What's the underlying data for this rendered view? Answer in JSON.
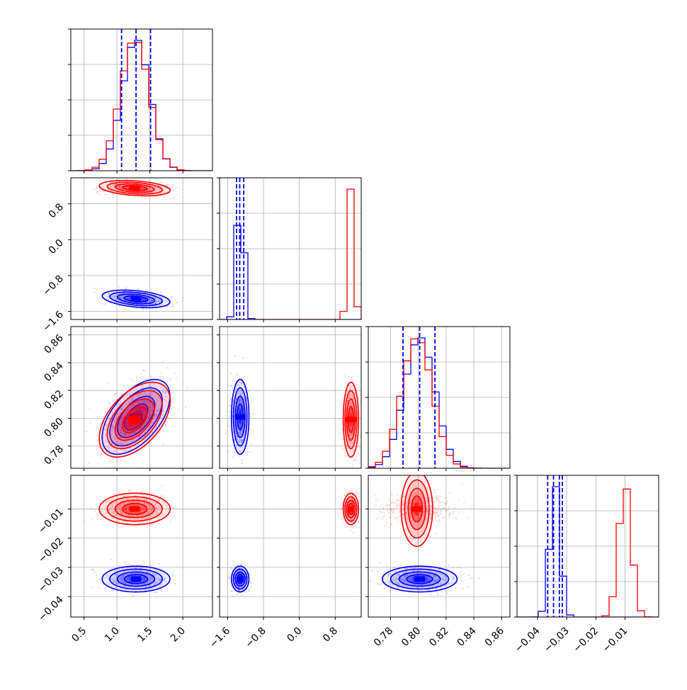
{
  "chart_data": {
    "type": "corner",
    "variables": [
      {
        "range": [
          0.3,
          2.45
        ],
        "ticks": [
          0.5,
          1.0,
          1.5,
          2.0
        ],
        "tick_labels": [
          "0.5",
          "1.0",
          "1.5",
          "2.0"
        ]
      },
      {
        "range": [
          -1.78,
          1.38
        ],
        "ticks": [
          -1.6,
          -0.8,
          0.0,
          0.8
        ],
        "tick_labels": [
          "−1.6",
          "−0.8",
          "0.0",
          "0.8"
        ]
      },
      {
        "range": [
          0.764,
          0.866
        ],
        "ticks": [
          0.78,
          0.8,
          0.82,
          0.84,
          0.86
        ],
        "tick_labels": [
          "0.78",
          "0.80",
          "0.82",
          "0.84",
          "0.86"
        ]
      },
      {
        "range": [
          -0.047,
          0.0015
        ],
        "ticks": [
          -0.04,
          -0.03,
          -0.02,
          -0.01
        ],
        "tick_labels": [
          "−0.04",
          "−0.03",
          "−0.02",
          "−0.01"
        ]
      }
    ],
    "grid": true,
    "colors": {
      "series_a": "#0000ff",
      "series_b": "#ff0000"
    },
    "series": [
      {
        "color": "#0000ff",
        "mean": [
          1.29,
          -1.32,
          0.801,
          -0.034
        ],
        "sd": [
          0.21,
          0.08,
          0.011,
          0.0018
        ],
        "rho01": -0.35,
        "rho02": 0.55
      },
      {
        "color": "#ff0000",
        "mean": [
          1.27,
          1.15,
          0.799,
          -0.01
        ],
        "sd": [
          0.22,
          0.07,
          0.011,
          0.0022
        ],
        "rho01": -0.3,
        "rho02": 0.5
      }
    ],
    "quantile_lines": [
      [
        1.07,
        1.29,
        1.51
      ],
      [
        -1.4,
        -1.33,
        -1.24
      ],
      [
        0.789,
        0.801,
        0.812
      ],
      [
        -0.0365,
        -0.0345,
        -0.0325,
        -0.0315
      ]
    ]
  }
}
